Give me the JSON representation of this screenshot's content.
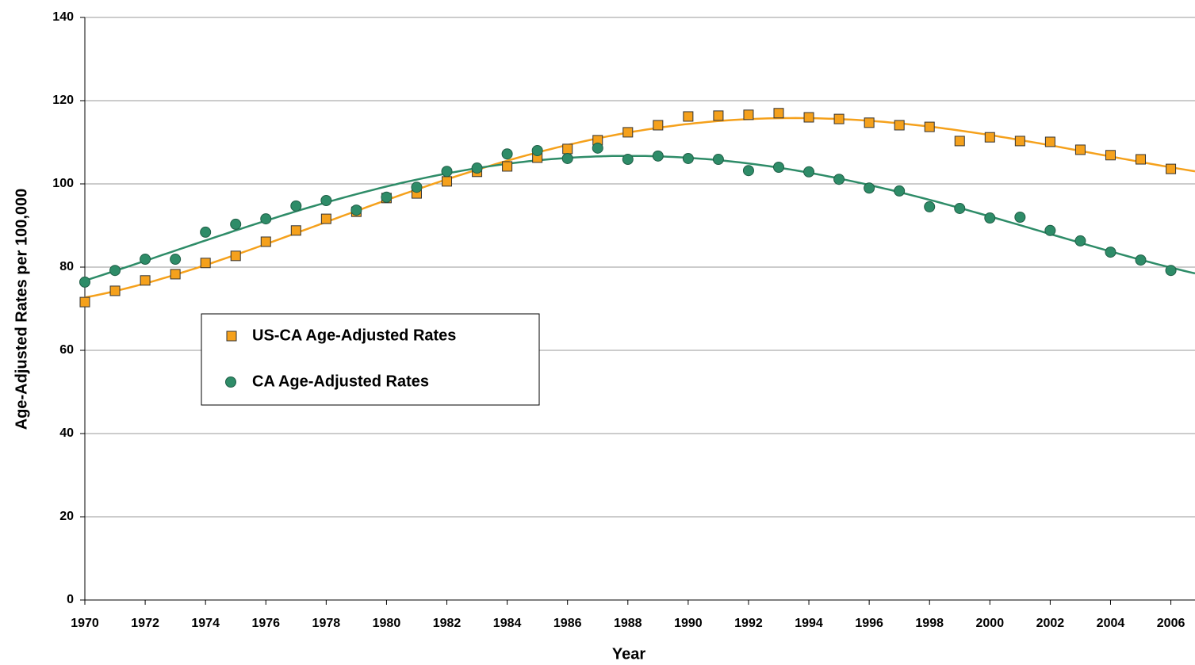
{
  "chart_data": {
    "type": "scatter",
    "x_label": "Year",
    "y_label": "Age-Adjusted Rates per 100,000",
    "x": [
      1970,
      1971,
      1972,
      1973,
      1974,
      1975,
      1976,
      1977,
      1978,
      1979,
      1980,
      1981,
      1982,
      1983,
      1984,
      1985,
      1986,
      1987,
      1988,
      1989,
      1990,
      1991,
      1992,
      1993,
      1994,
      1995,
      1996,
      1997,
      1998,
      1999,
      2000,
      2001,
      2002,
      2003,
      2004,
      2005,
      2006
    ],
    "series": [
      {
        "name": "US-CA Age-Adjusted Rates",
        "color": "#f5a11c",
        "marker": "square",
        "trendline": true,
        "values": [
          71.6,
          74.3,
          76.8,
          78.3,
          81,
          82.7,
          86.1,
          88.8,
          91.6,
          93.3,
          96.6,
          97.7,
          100.6,
          102.9,
          104.2,
          106.3,
          108.4,
          110.5,
          112.4,
          114.1,
          116.2,
          116.4,
          116.6,
          117,
          116,
          115.6,
          114.7,
          114.1,
          113.7,
          110.3,
          111.2,
          110.3,
          110.1,
          108.2,
          106.9,
          105.9,
          103.6
        ]
      },
      {
        "name": "CA Age-Adjusted Rates",
        "color": "#2e8c68",
        "marker": "circle",
        "trendline": true,
        "values": [
          76.4,
          79.2,
          81.9,
          81.9,
          88.4,
          90.3,
          91.6,
          94.7,
          96,
          93.7,
          96.8,
          99.2,
          103,
          103.8,
          107.2,
          108,
          106.1,
          108.6,
          105.9,
          106.7,
          106.1,
          105.9,
          103.2,
          104,
          102.9,
          101.1,
          99,
          98.3,
          94.5,
          94.1,
          91.8,
          92,
          88.8,
          86.3,
          83.6,
          81.7,
          79.2
        ]
      }
    ],
    "xlim": [
      1970,
      2006.8
    ],
    "xticks": [
      1970,
      1972,
      1974,
      1976,
      1978,
      1980,
      1982,
      1984,
      1986,
      1988,
      1990,
      1992,
      1994,
      1996,
      1998,
      2000,
      2002,
      2004,
      2006
    ],
    "ylim": [
      0,
      140
    ],
    "yticks": [
      0,
      20,
      40,
      60,
      80,
      100,
      120,
      140
    ],
    "grid": true,
    "legend": "left"
  }
}
